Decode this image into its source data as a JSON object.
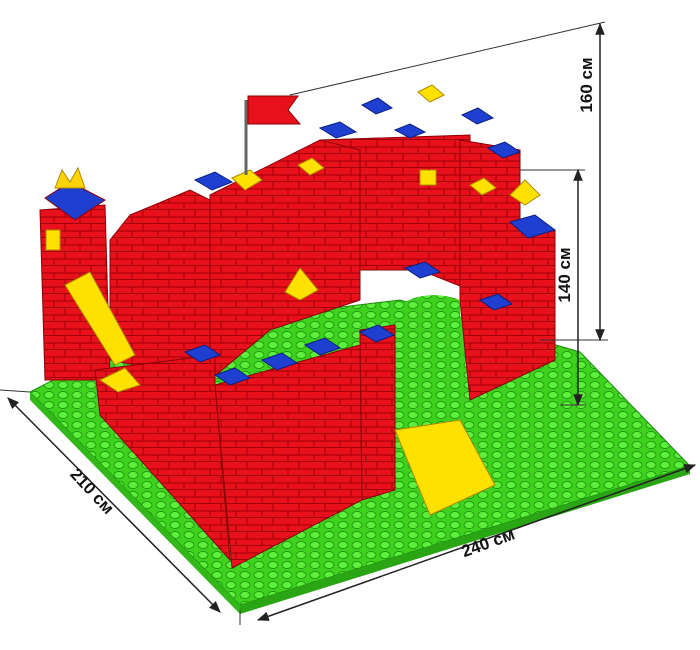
{
  "dimensions": {
    "total_height": "160 см",
    "gate_height": "140 см",
    "depth": "210 см",
    "width": "240 см"
  }
}
